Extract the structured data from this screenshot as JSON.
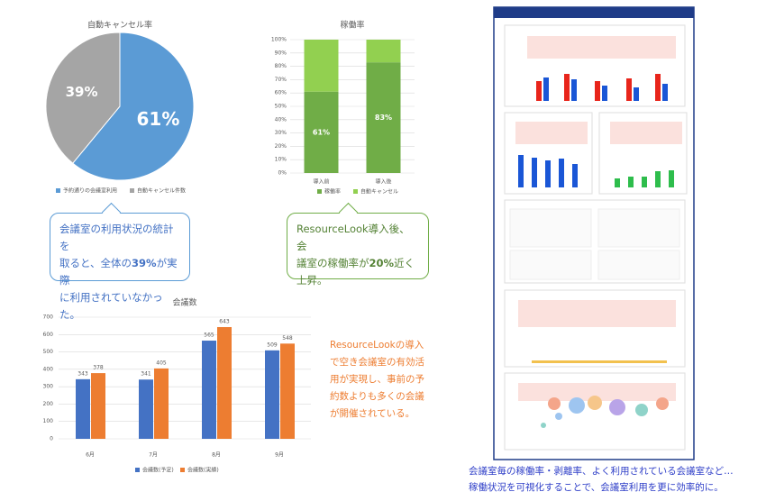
{
  "chart_data": [
    {
      "type": "pie",
      "title": "自動キャンセル率",
      "categories": [
        "予約通りの会議室利用",
        "自動キャンセル件数"
      ],
      "values": [
        61,
        39
      ],
      "value_labels": [
        "61%",
        "39%"
      ],
      "colors": [
        "#5b9bd5",
        "#a5a5a5"
      ]
    },
    {
      "type": "stacked-bar",
      "title": "稼働率",
      "categories": [
        "導入前",
        "導入後"
      ],
      "series": [
        {
          "name": "稼働率",
          "color": "#70ad47",
          "values": [
            61,
            83
          ],
          "value_labels": [
            "61%",
            "83%"
          ]
        },
        {
          "name": "自動キャンセル",
          "color": "#92d050",
          "values": [
            39,
            17
          ]
        }
      ],
      "ylim": [
        0,
        100
      ],
      "yticks": [
        {
          "value": 0,
          "label": "0%"
        },
        {
          "value": 10,
          "label": "10%"
        },
        {
          "value": 20,
          "label": "20%"
        },
        {
          "value": 30,
          "label": "30%"
        },
        {
          "value": 40,
          "label": "40%"
        },
        {
          "value": 50,
          "label": "50%"
        },
        {
          "value": 60,
          "label": "60%"
        },
        {
          "value": 70,
          "label": "70%"
        },
        {
          "value": 80,
          "label": "80%"
        },
        {
          "value": 90,
          "label": "90%"
        },
        {
          "value": 100,
          "label": "100%"
        }
      ],
      "grid": true
    },
    {
      "type": "bar",
      "title": "会議数",
      "categories": [
        "6月",
        "7月",
        "8月",
        "9月"
      ],
      "series": [
        {
          "name": "会議数(予定)",
          "color": "#4472c4",
          "values": [
            343,
            341,
            565,
            509
          ]
        },
        {
          "name": "会議数(実績)",
          "color": "#ed7d31",
          "values": [
            378,
            405,
            643,
            548
          ]
        }
      ],
      "ylim": [
        0,
        700
      ],
      "yticks": [
        0,
        100,
        200,
        300,
        400,
        500,
        600,
        700
      ],
      "grid": true
    }
  ],
  "callouts": [
    {
      "lines": [
        [
          "会議室の利用状況の統計を"
        ],
        [
          "取ると、全体の",
          "39%",
          "が実際"
        ],
        [
          "に利用されていなかった。"
        ]
      ]
    },
    {
      "lines": [
        [
          "ResourceLook導入後、会"
        ],
        [
          "議室の稼働率が",
          "20%",
          "近く"
        ],
        [
          "上昇。"
        ]
      ]
    }
  ],
  "note": [
    "ResourceLookの導入",
    "で空き会議室の有効活",
    "用が実現し、事前の予",
    "約数よりも多くの会議",
    "が開催されている。"
  ],
  "caption": [
    "会議室毎の稼働率・剥離率、よく利用されている会議室など…",
    "稼働状況を可視化することで、会議室利用を更に効率的に。"
  ]
}
